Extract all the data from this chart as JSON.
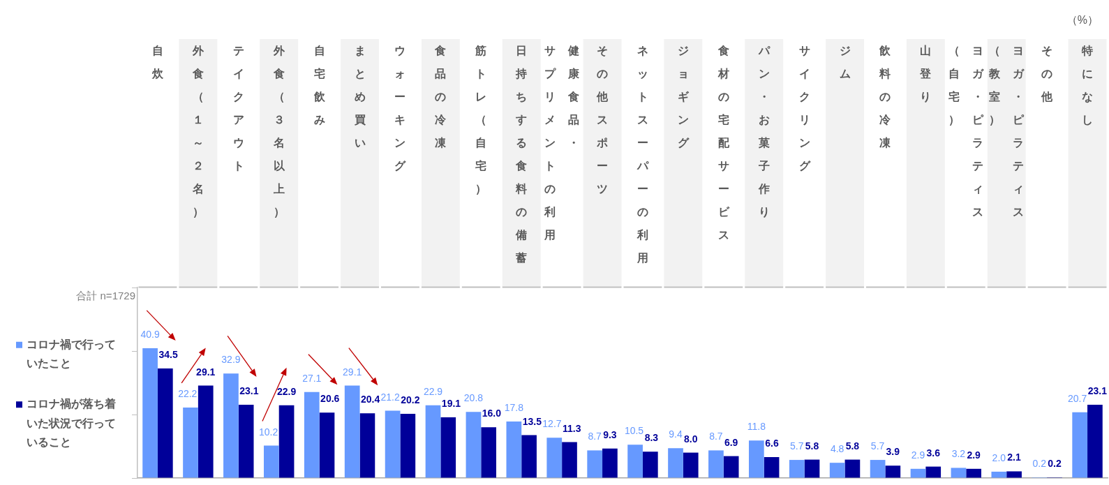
{
  "chart_data": {
    "type": "bar",
    "categories": [
      "自炊",
      "外食（１～２名）",
      "テイクアウト",
      "外食（３名以上）",
      "自宅飲み",
      "まとめ買い",
      "ウォーキング",
      "食品の冷凍",
      "筋トレ（自宅）",
      "日持ちする食料の備蓄",
      "健康食品・サプリメントの利用",
      "その他スポーツ",
      "ネットスーパーの利用",
      "ジョギング",
      "食材の宅配サービス",
      "パン・お菓子作り",
      "サイクリング",
      "ジム",
      "飲料の冷凍",
      "山登り",
      "ヨガ・ピラティス（自宅）",
      "ヨガ・ピラティス（教室）",
      "その他",
      "特になし"
    ],
    "series": [
      {
        "name": "コロナ禍で行っていたこと",
        "color": "#6699ff",
        "values": [
          40.9,
          22.2,
          32.9,
          10.2,
          27.1,
          29.1,
          21.2,
          22.9,
          20.8,
          17.8,
          12.7,
          8.7,
          10.5,
          9.4,
          8.7,
          11.8,
          5.7,
          4.8,
          5.7,
          2.9,
          3.2,
          2.0,
          0.2,
          20.7
        ],
        "value_labels": [
          "40.9",
          "22.2",
          "32.9",
          "10.2",
          "27.1",
          "29.1",
          "21.2",
          "22.9",
          "20.8",
          "17.8",
          "12.7",
          "8.7",
          "10.5",
          "9.4",
          "8.7",
          "11.8",
          "5.7",
          "4.8",
          "5.7",
          "2.9",
          "3.2",
          "2.0",
          "0.2",
          "20.7"
        ]
      },
      {
        "name": "コロナ禍が落ち着いた状況で行っていること",
        "color": "#000099",
        "values": [
          34.5,
          29.1,
          23.1,
          22.9,
          20.6,
          20.4,
          20.2,
          19.1,
          16.0,
          13.5,
          11.3,
          9.3,
          8.3,
          8.0,
          6.9,
          6.6,
          5.8,
          5.8,
          3.9,
          3.6,
          2.9,
          2.1,
          0.2,
          23.1
        ],
        "value_labels": [
          "34.5",
          "29.1",
          "23.1",
          "22.9",
          "20.6",
          "20.4",
          "20.2",
          "19.1",
          "16.0",
          "13.5",
          "11.3",
          "9.3",
          "8.3",
          "8.0",
          "6.9",
          "6.6",
          "5.8",
          "5.8",
          "3.9",
          "3.6",
          "2.9",
          "2.1",
          "0.2",
          "23.1"
        ]
      }
    ],
    "ylabel": "（%）",
    "ylim": [
      0,
      60
    ],
    "yticks": [
      {
        "value": 0,
        "label": null
      },
      {
        "value": 20,
        "label": null
      },
      {
        "value": 40,
        "label": null
      },
      {
        "value": 60,
        "label": null
      }
    ],
    "tick_labels": "x",
    "legend": "left",
    "annotations": [
      "合計 n=1729"
    ]
  }
}
